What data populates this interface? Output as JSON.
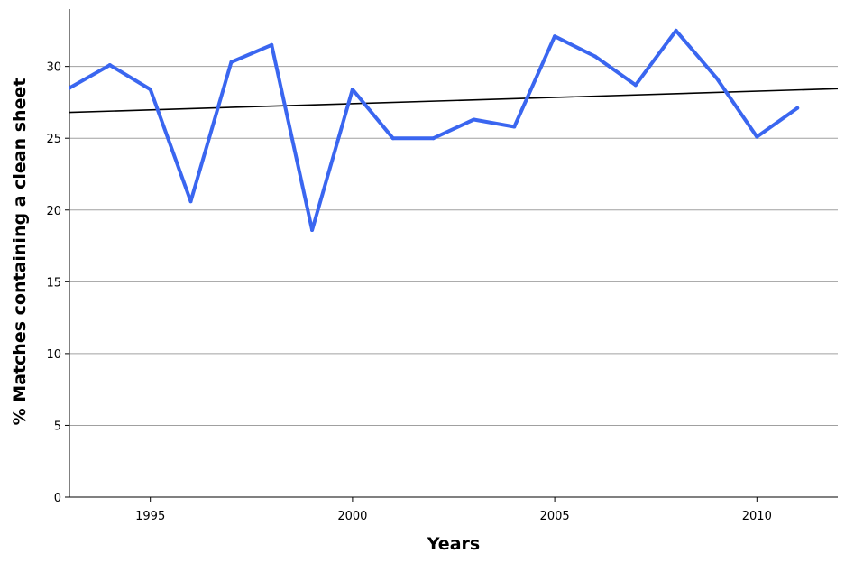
{
  "chart_data": {
    "type": "line",
    "title": "",
    "xlabel": "Years",
    "ylabel": "% Matches containing a clean sheet",
    "xlim": [
      1993,
      2012
    ],
    "ylim": [
      0,
      34
    ],
    "x_ticks": [
      1995,
      2000,
      2005,
      2010
    ],
    "y_ticks": [
      0,
      5,
      10,
      15,
      20,
      25,
      30
    ],
    "grid": "horizontal",
    "legend": "none",
    "series": [
      {
        "color": "#3a66f0",
        "x": [
          1993,
          1994,
          1995,
          1996,
          1997,
          1998,
          1999,
          2000,
          2001,
          2002,
          2003,
          2004,
          2005,
          2006,
          2007,
          2008,
          2009,
          2010,
          2011
        ],
        "y": [
          28.5,
          30.1,
          28.4,
          20.6,
          30.3,
          31.5,
          18.6,
          28.4,
          25.0,
          25.0,
          26.3,
          25.8,
          32.1,
          30.7,
          28.7,
          32.5,
          29.2,
          25.1,
          27.1
        ]
      }
    ],
    "trendline": {
      "color": "#000000",
      "x": [
        1993,
        2012
      ],
      "y": [
        26.8,
        28.45
      ]
    }
  }
}
